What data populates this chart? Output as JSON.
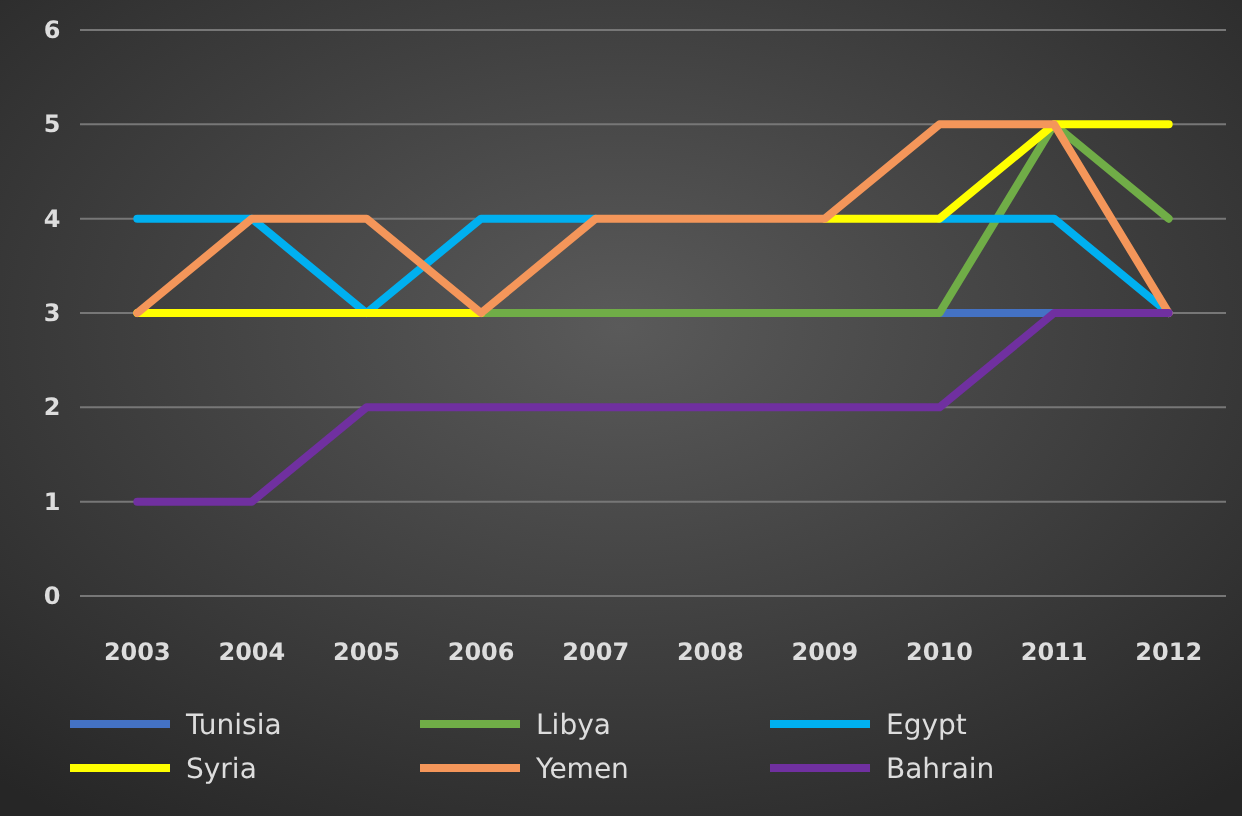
{
  "chart_data": {
    "type": "line",
    "categories": [
      "2003",
      "2004",
      "2005",
      "2006",
      "2007",
      "2008",
      "2009",
      "2010",
      "2011",
      "2012"
    ],
    "ylim": [
      0,
      6
    ],
    "yticks": [
      0,
      1,
      2,
      3,
      4,
      5,
      6
    ],
    "grid": "y",
    "legend": "bottom",
    "marker": "none",
    "line_style": "solid",
    "series": [
      {
        "name": "Tunisia",
        "color": "#4472c4",
        "values": [
          null,
          null,
          null,
          null,
          null,
          null,
          null,
          3,
          3,
          null
        ]
      },
      {
        "name": "Libya",
        "color": "#70ad47",
        "values": [
          null,
          null,
          null,
          3,
          3,
          3,
          3,
          3,
          5,
          4
        ]
      },
      {
        "name": "Egypt",
        "color": "#00b0f0",
        "values": [
          4,
          4,
          3,
          4,
          4,
          null,
          null,
          4,
          4,
          3
        ]
      },
      {
        "name": "Syria",
        "color": "#ffff00",
        "values": [
          3,
          3,
          3,
          3,
          null,
          null,
          4,
          4,
          5,
          5
        ]
      },
      {
        "name": "Yemen",
        "color": "#f4965a",
        "values": [
          3,
          4,
          4,
          3,
          4,
          4,
          4,
          5,
          5,
          3
        ]
      },
      {
        "name": "Bahrain",
        "color": "#7030a0",
        "values": [
          1,
          1,
          2,
          2,
          2,
          2,
          2,
          2,
          3,
          3
        ]
      }
    ]
  }
}
